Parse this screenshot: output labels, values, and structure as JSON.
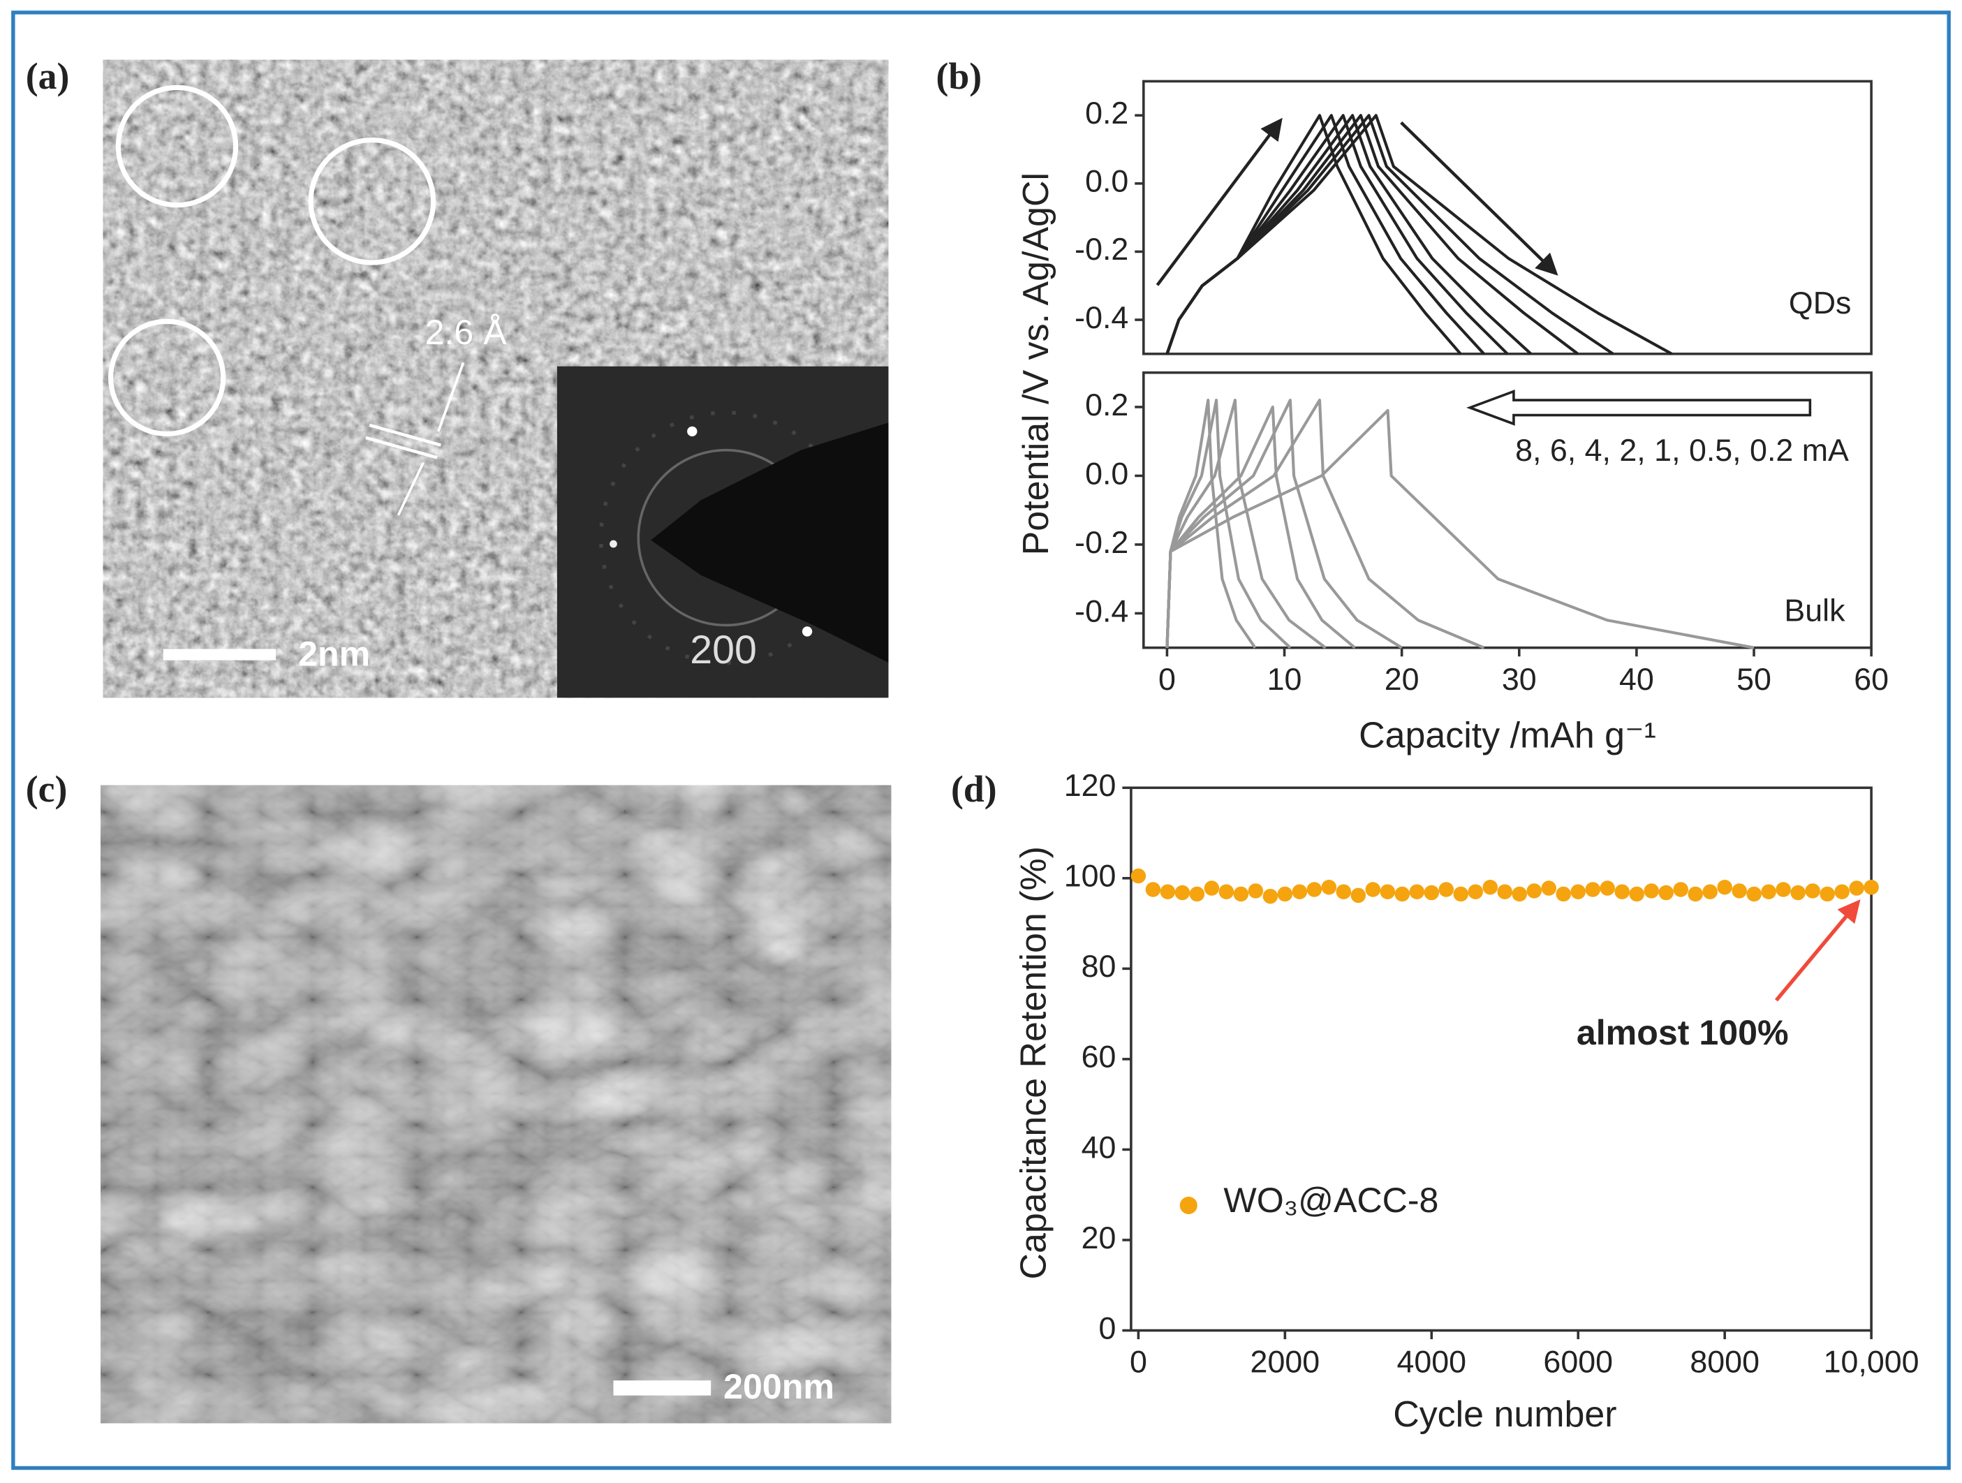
{
  "panels": [
    {
      "label": "(a)",
      "scale_bar": "2nm",
      "lattice": "2.6 Å",
      "inset_label": "200"
    },
    {
      "label": "(b)"
    },
    {
      "label": "(c)",
      "scale_bar": "200nm"
    },
    {
      "label": "(d)"
    }
  ],
  "chart_data": [
    {
      "type": "line",
      "y_label": "Potential /V vs. Ag/AgCl",
      "annotations": [
        "QDs"
      ],
      "xlim": [
        -2,
        60
      ],
      "ylim": [
        -0.5,
        0.3
      ],
      "yticks": [
        0.2,
        {
          "value": 0,
          "label": "0.0"
        },
        -0.2,
        -0.4
      ],
      "series": [
        {
          "color": "#222222",
          "x": [
            0,
            1,
            3,
            6,
            9.1,
            13,
            14.5,
            18.4,
            22,
            25
          ],
          "values": [
            -0.5,
            -0.4,
            -0.3,
            -0.22,
            -0.02,
            0.2,
            0.05,
            -0.22,
            -0.38,
            -0.5
          ]
        },
        {
          "color": "#222222",
          "x": [
            0,
            1,
            3,
            6,
            9.8,
            14,
            15.5,
            19.9,
            23.8,
            27
          ],
          "values": [
            -0.5,
            -0.4,
            -0.3,
            -0.22,
            -0.02,
            0.2,
            0.05,
            -0.22,
            -0.38,
            -0.5
          ]
        },
        {
          "color": "#222222",
          "x": [
            0,
            1,
            3,
            6,
            10.5,
            15,
            16.5,
            21.3,
            25.5,
            29
          ],
          "values": [
            -0.5,
            -0.4,
            -0.3,
            -0.22,
            -0.02,
            0.2,
            0.05,
            -0.22,
            -0.38,
            -0.5
          ]
        },
        {
          "color": "#222222",
          "x": [
            0,
            1,
            3,
            6,
            11.1,
            15.8,
            17.3,
            22.6,
            27.2,
            31
          ],
          "values": [
            -0.5,
            -0.4,
            -0.3,
            -0.22,
            -0.02,
            0.2,
            0.05,
            -0.22,
            -0.38,
            -0.5
          ]
        },
        {
          "color": "#222222",
          "x": [
            0,
            1,
            3,
            6,
            11.6,
            16.5,
            18,
            24.8,
            30.4,
            35
          ],
          "values": [
            -0.5,
            -0.4,
            -0.3,
            -0.22,
            -0.02,
            0.2,
            0.05,
            -0.22,
            -0.38,
            -0.5
          ]
        },
        {
          "color": "#222222",
          "x": [
            0,
            1,
            3,
            6,
            12,
            17.2,
            18.7,
            26.6,
            32.8,
            38
          ],
          "values": [
            -0.5,
            -0.4,
            -0.3,
            -0.22,
            -0.02,
            0.2,
            0.05,
            -0.22,
            -0.38,
            -0.5
          ]
        },
        {
          "color": "#222222",
          "x": [
            0,
            1,
            3,
            6,
            12.5,
            17.8,
            19.3,
            29.1,
            36.7,
            43
          ],
          "values": [
            -0.5,
            -0.4,
            -0.3,
            -0.22,
            -0.02,
            0.2,
            0.05,
            -0.22,
            -0.38,
            -0.5
          ]
        }
      ]
    },
    {
      "type": "line",
      "x_label": "Capacity /mAh g⁻¹",
      "annotations": [
        "Bulk",
        "8, 6, 4, 2, 1, 0.5, 0.2 mA"
      ],
      "xlim": [
        -2,
        60
      ],
      "xticks": [
        0,
        10,
        20,
        30,
        40,
        50,
        60
      ],
      "ylim": [
        -0.5,
        0.3
      ],
      "yticks": [
        0.2,
        {
          "value": 0,
          "label": "0.0"
        },
        -0.2,
        -0.4
      ],
      "series": [
        {
          "color": "#999999",
          "x": [
            0,
            0.3,
            1.05,
            2.45,
            3.5,
            3.8,
            4.7,
            5.9,
            7.5
          ],
          "values": [
            -0.5,
            -0.22,
            -0.12,
            0,
            0.22,
            0,
            -0.3,
            -0.42,
            -0.5
          ]
        },
        {
          "color": "#999999",
          "x": [
            0,
            0.3,
            1.26,
            2.94,
            4.2,
            4.5,
            6.1,
            8,
            10.5
          ],
          "values": [
            -0.5,
            -0.22,
            -0.12,
            0,
            0.22,
            0,
            -0.3,
            -0.42,
            -0.5
          ]
        },
        {
          "color": "#999999",
          "x": [
            0,
            0.3,
            1.74,
            4.06,
            5.8,
            6.1,
            8.1,
            10.4,
            13.5
          ],
          "values": [
            -0.5,
            -0.22,
            -0.12,
            0,
            0.22,
            0,
            -0.3,
            -0.42,
            -0.5
          ]
        },
        {
          "color": "#999999",
          "x": [
            0,
            0.3,
            2.7,
            6.3,
            9,
            9.3,
            11.1,
            13.2,
            16
          ],
          "values": [
            -0.5,
            -0.22,
            -0.12,
            0,
            0.2,
            0,
            -0.3,
            -0.42,
            -0.5
          ]
        },
        {
          "color": "#999999",
          "x": [
            0,
            0.3,
            3.15,
            7.35,
            10.5,
            10.8,
            13.4,
            16.2,
            20
          ],
          "values": [
            -0.5,
            -0.22,
            -0.12,
            0,
            0.22,
            0,
            -0.3,
            -0.42,
            -0.5
          ]
        },
        {
          "color": "#999999",
          "x": [
            0,
            0.3,
            3.9,
            9.1,
            13,
            13.3,
            17.2,
            21.4,
            27
          ],
          "values": [
            -0.5,
            -0.22,
            -0.12,
            0,
            0.22,
            0,
            -0.3,
            -0.42,
            -0.5
          ]
        },
        {
          "color": "#999999",
          "x": [
            0,
            0.3,
            5.64,
            13.16,
            18.8,
            19.1,
            28.2,
            37.5,
            50
          ],
          "values": [
            -0.5,
            -0.22,
            -0.12,
            0,
            0.19,
            0,
            -0.3,
            -0.42,
            -0.5
          ]
        }
      ]
    },
    {
      "type": "scatter",
      "x_label": "Cycle number",
      "y_label": "Capacitance Retention (%)",
      "annotations": [
        "almost 100%"
      ],
      "xlim": [
        -100,
        10000
      ],
      "xticks": [
        0,
        2000,
        4000,
        6000,
        8000,
        {
          "value": 10000,
          "label": "10,000"
        }
      ],
      "ylim": [
        0,
        120
      ],
      "yticks": [
        0,
        20,
        40,
        60,
        80,
        100,
        120
      ],
      "legend": "lower left",
      "series": [
        {
          "name": "WO₃@ACC-8",
          "color": "#f5a40f",
          "x": [
            0,
            200,
            400,
            600,
            800,
            1000,
            1200,
            1400,
            1600,
            1800,
            2000,
            2200,
            2400,
            2600,
            2800,
            3000,
            3200,
            3400,
            3600,
            3800,
            4000,
            4200,
            4400,
            4600,
            4800,
            5000,
            5200,
            5400,
            5600,
            5800,
            6000,
            6200,
            6400,
            6600,
            6800,
            7000,
            7200,
            7400,
            7600,
            7800,
            8000,
            8200,
            8400,
            8600,
            8800,
            9000,
            9200,
            9400,
            9600,
            9800,
            10000
          ],
          "values": [
            100.5,
            97.5,
            97,
            96.8,
            96.5,
            97.8,
            97,
            96.5,
            97.2,
            96,
            96.5,
            97,
            97.5,
            98,
            97,
            96.2,
            97.5,
            97,
            96.5,
            97,
            96.8,
            97.5,
            96.5,
            97,
            98,
            97,
            96.5,
            97.2,
            97.8,
            96.5,
            97,
            97.5,
            97.8,
            97,
            96.5,
            97.2,
            96.8,
            97.5,
            96.5,
            97,
            98,
            97.2,
            96.5,
            97,
            97.5,
            96.8,
            97.2,
            96.5,
            97,
            97.8,
            98
          ]
        }
      ]
    }
  ]
}
